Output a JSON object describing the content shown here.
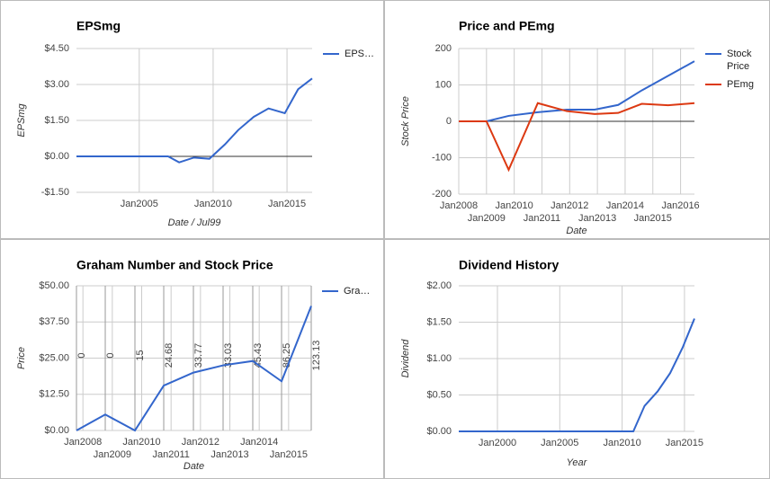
{
  "chart_data": [
    {
      "type": "line",
      "title": "EPSmg",
      "ylabel": "EPSmg",
      "xlabel": "Date / Jul99",
      "x": [
        2000.75,
        2006.95,
        2007.7,
        2008.7,
        2009.75,
        2010.8,
        2011.7,
        2012.75,
        2013.75,
        2014.85,
        2015.75,
        2016.7
      ],
      "series": [
        {
          "name": "EPS…",
          "color": "#3366cc",
          "values": [
            0,
            0,
            -0.25,
            -0.05,
            -0.1,
            0.5,
            1.1,
            1.65,
            2.0,
            1.8,
            2.8,
            3.25
          ]
        }
      ],
      "xlim": [
        2000.75,
        2016.7
      ],
      "xticks": [
        {
          "value": 2005,
          "label": "Jan2005"
        },
        {
          "value": 2010,
          "label": "Jan2010"
        },
        {
          "value": 2015,
          "label": "Jan2015"
        }
      ],
      "ylim": [
        -1.5,
        4.5
      ],
      "yticks": [
        {
          "value": 4.5,
          "label": "$4.50"
        },
        {
          "value": 3,
          "label": "$3.00"
        },
        {
          "value": 1.5,
          "label": "$1.50"
        },
        {
          "value": 0,
          "label": "$0.00"
        },
        {
          "value": -1.5,
          "label": "-$1.50"
        }
      ],
      "grid": true,
      "legend": "right"
    },
    {
      "type": "line",
      "title": "Price and PEmg",
      "ylabel": "Stock Price",
      "xlabel": "Date",
      "x": [
        2008,
        2009,
        2009.8,
        2010.85,
        2011.9,
        2012.9,
        2013.75,
        2014.6,
        2015.55,
        2016.5
      ],
      "series": [
        {
          "name": "Stock Price",
          "color": "#3366cc",
          "values": [
            0,
            0,
            15,
            25,
            32,
            32,
            45,
            85,
            125,
            165
          ]
        },
        {
          "name": "PEmg",
          "color": "#dc3912",
          "values": [
            0,
            0,
            -133,
            50,
            28,
            20,
            23,
            48,
            44,
            50
          ]
        }
      ],
      "xlim": [
        2008,
        2016.5
      ],
      "xticks": [
        {
          "value": 2008,
          "label": "Jan2008"
        },
        {
          "value": 2009,
          "label": "Jan2009"
        },
        {
          "value": 2010,
          "label": "Jan2010"
        },
        {
          "value": 2011,
          "label": "Jan2011"
        },
        {
          "value": 2012,
          "label": "Jan2012"
        },
        {
          "value": 2013,
          "label": "Jan2013"
        },
        {
          "value": 2014,
          "label": "Jan2014"
        },
        {
          "value": 2015,
          "label": "Jan2015"
        },
        {
          "value": 2016,
          "label": "Jan2016"
        }
      ],
      "ylim": [
        -200,
        200
      ],
      "yticks": [
        200,
        100,
        0,
        -100,
        -200
      ],
      "grid": true,
      "legend": "right"
    },
    {
      "type": "line",
      "title": "Graham Number and Stock Price",
      "ylabel": "Price",
      "xlabel": "Date",
      "x": [
        2007.78,
        2008.76,
        2009.77,
        2010.75,
        2011.76,
        2012.77,
        2013.78,
        2014.76,
        2015.77
      ],
      "series": [
        {
          "name": "Gra…",
          "color": "#3366cc",
          "values": [
            0,
            5.5,
            0,
            15.5,
            20,
            22.5,
            24,
            17,
            43
          ]
        }
      ],
      "annotations": [
        "0",
        "0",
        "15",
        "24.68",
        "33.77",
        "33.03",
        "45.43",
        "86.25",
        "123.13"
      ],
      "xlim": [
        2007.78,
        2015.77
      ],
      "xticks": [
        {
          "value": 2008,
          "label": "Jan2008"
        },
        {
          "value": 2009,
          "label": "Jan2009"
        },
        {
          "value": 2010,
          "label": "Jan2010"
        },
        {
          "value": 2011,
          "label": "Jan2011"
        },
        {
          "value": 2012,
          "label": "Jan2012"
        },
        {
          "value": 2013,
          "label": "Jan2013"
        },
        {
          "value": 2014,
          "label": "Jan2014"
        },
        {
          "value": 2015,
          "label": "Jan2015"
        }
      ],
      "ylim": [
        0,
        50
      ],
      "yticks": [
        {
          "value": 50,
          "label": "$50.00"
        },
        {
          "value": 37.5,
          "label": "$37.50"
        },
        {
          "value": 25,
          "label": "$25.00"
        },
        {
          "value": 12.5,
          "label": "$12.50"
        },
        {
          "value": 0,
          "label": "$0.00"
        }
      ],
      "grid": true,
      "legend": "right"
    },
    {
      "type": "line",
      "title": "Dividend History",
      "ylabel": "Dividend",
      "xlabel": "Year",
      "x": [
        1996.9,
        2010.9,
        2011.8,
        2012.85,
        2013.85,
        2014.85,
        2015.8
      ],
      "values": [
        0,
        0,
        0.35,
        0.55,
        0.8,
        1.15,
        1.55
      ],
      "color": "#3366cc",
      "xlim": [
        1996.9,
        2015.8
      ],
      "xticks": [
        {
          "value": 2000,
          "label": "Jan2000"
        },
        {
          "value": 2005,
          "label": "Jan2005"
        },
        {
          "value": 2010,
          "label": "Jan2010"
        },
        {
          "value": 2015,
          "label": "Jan2015"
        }
      ],
      "ylim": [
        0,
        2
      ],
      "yticks": [
        {
          "value": 2,
          "label": "$2.00"
        },
        {
          "value": 1.5,
          "label": "$1.50"
        },
        {
          "value": 1,
          "label": "$1.00"
        },
        {
          "value": 0.5,
          "label": "$0.50"
        },
        {
          "value": 0,
          "label": "$0.00"
        }
      ],
      "grid": true
    }
  ]
}
